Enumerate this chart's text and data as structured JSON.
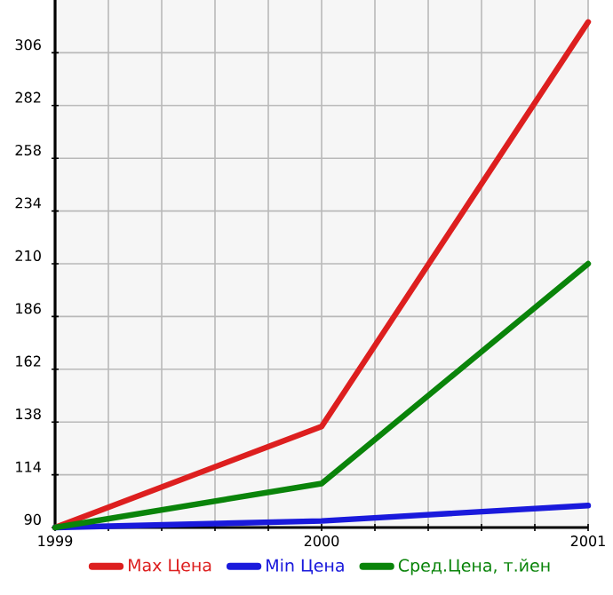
{
  "chart_data": {
    "type": "line",
    "x": [
      1999,
      2000,
      2001
    ],
    "series": [
      {
        "name": "Max Цена",
        "color": "#dd1f1f",
        "values": [
          90,
          136,
          320
        ]
      },
      {
        "name": "Min Цена",
        "color": "#1a1adc",
        "values": [
          90,
          93,
          100
        ]
      },
      {
        "name": "Сред.Цена, т.йен",
        "color": "#0a840a",
        "values": [
          90,
          110,
          210
        ]
      }
    ],
    "xlim": [
      1999,
      2001
    ],
    "xticks": [
      1999,
      {
        "value": 1999.2,
        "label": null
      },
      {
        "value": 1999.4,
        "label": null
      },
      {
        "value": 1999.6,
        "label": null
      },
      {
        "value": 1999.8,
        "label": null
      },
      2000,
      {
        "value": 2000.2,
        "label": null
      },
      {
        "value": 2000.4,
        "label": null
      },
      {
        "value": 2000.6,
        "label": null
      },
      {
        "value": 2000.8,
        "label": null
      },
      2001
    ],
    "ylim": [
      90,
      330
    ],
    "yticks": [
      90,
      114,
      138,
      162,
      186,
      210,
      234,
      258,
      282,
      306
    ],
    "grid": true,
    "legend": "bottom",
    "marker": "none",
    "line_style": "solid"
  }
}
